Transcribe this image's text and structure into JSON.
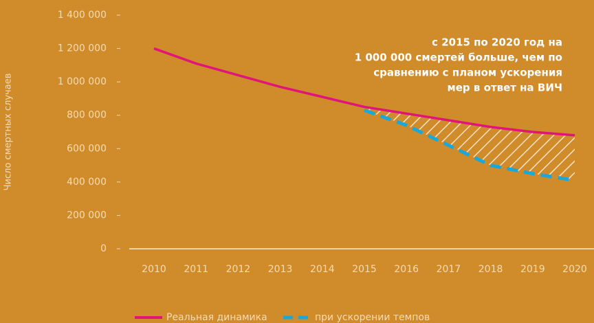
{
  "chart_data": {
    "type": "line",
    "y_label": "Число смертных случаев",
    "annotation": [
      "с 2015 по 2020 год на",
      "1 000 000 смертей больше, чем по",
      "сравнению с планом ускорения",
      "мер в ответ на ВИЧ"
    ],
    "categories": [
      "2010",
      "2011",
      "2012",
      "2013",
      "2014",
      "2015",
      "2016",
      "2017",
      "2018",
      "2019",
      "2020"
    ],
    "series": [
      {
        "name": "Реальная динамика",
        "color": "#e0157a",
        "dash": false,
        "values": [
          1200000,
          1110000,
          1040000,
          970000,
          910000,
          850000,
          810000,
          770000,
          730000,
          700000,
          680000
        ]
      },
      {
        "name": "при ускорении темпов",
        "color": "#1ba8d8",
        "dash": true,
        "values": [
          null,
          null,
          null,
          null,
          null,
          830000,
          740000,
          620000,
          500000,
          450000,
          410000
        ]
      }
    ],
    "ylim": [
      0,
      1400000
    ],
    "yticks": [
      0,
      {
        "value": 200000,
        "label": "200 000"
      },
      {
        "value": 400000,
        "label": "400 000"
      },
      {
        "value": 600000,
        "label": "600 000"
      },
      {
        "value": 800000,
        "label": "800 000"
      },
      {
        "value": 1000000,
        "label": "1 000 000"
      },
      {
        "value": 1200000,
        "label": "1 200 000"
      },
      {
        "value": 1400000,
        "label": "1 400 000"
      }
    ],
    "hatch_gap": true
  }
}
